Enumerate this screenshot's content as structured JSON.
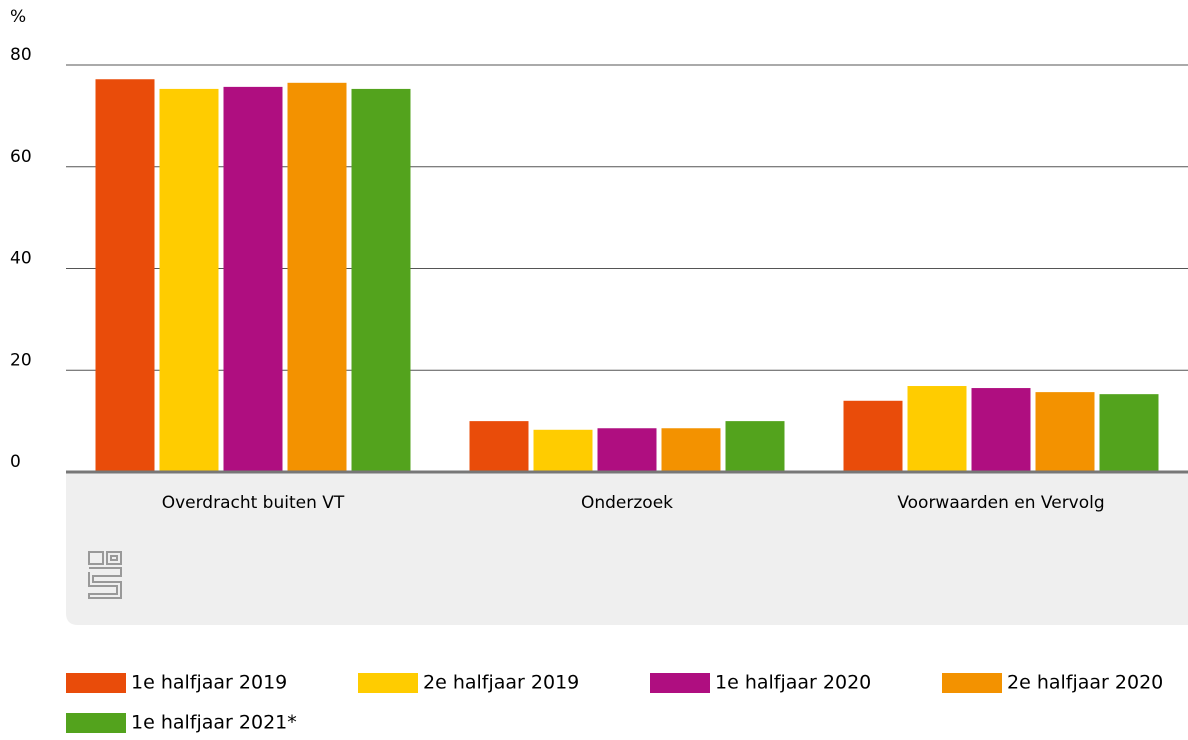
{
  "chart_data": {
    "type": "bar",
    "y_label": "%",
    "categories": [
      "Overdracht buiten VT",
      "Onderzoek",
      "Voorwaarden en Vervolg"
    ],
    "series": [
      {
        "name": "1e halfjaar 2019",
        "color": "#e94c0a",
        "values": [
          77.2,
          10.0,
          14.0
        ]
      },
      {
        "name": "2e halfjaar 2019",
        "color": "#ffcc00",
        "values": [
          75.3,
          8.3,
          16.9
        ]
      },
      {
        "name": "1e halfjaar 2020",
        "color": "#af0e80",
        "values": [
          75.7,
          8.6,
          16.5
        ]
      },
      {
        "name": "2e halfjaar 2020",
        "color": "#f39200",
        "values": [
          76.5,
          8.6,
          15.7
        ]
      },
      {
        "name": "1e halfjaar 2021*",
        "color": "#53a31d",
        "values": [
          75.3,
          10.0,
          15.3
        ]
      }
    ],
    "ylim": [
      0,
      80
    ],
    "yticks": [
      0,
      20,
      40,
      60,
      80
    ],
    "grid": true,
    "legend": "bottom"
  }
}
